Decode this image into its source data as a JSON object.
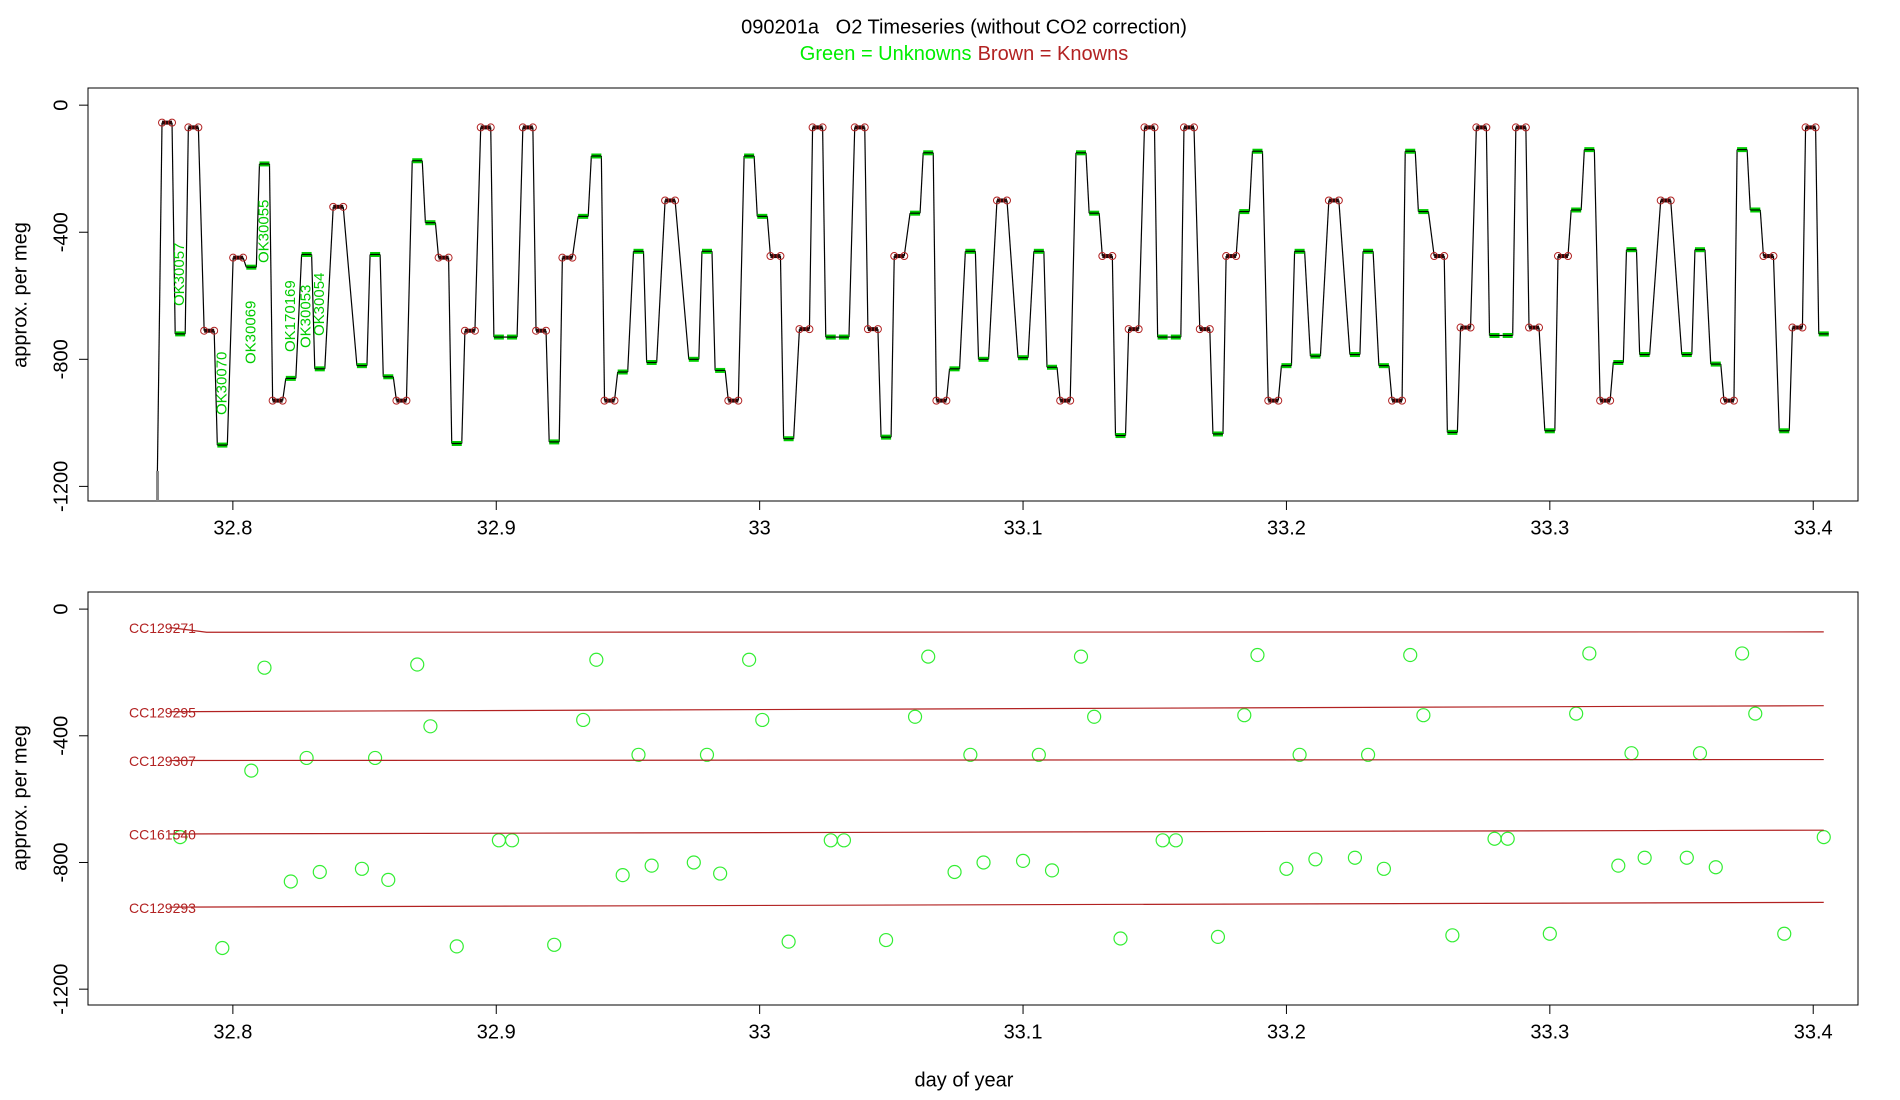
{
  "chart_data": [
    {
      "type": "line",
      "title": "090201a   O2 Timeseries (without CO2 correction)",
      "ylabel": "approx. per meg",
      "xlim": [
        32.745,
        33.417
      ],
      "xticks": [
        32.8,
        32.9,
        33.0,
        33.1,
        33.2,
        33.3,
        33.4
      ],
      "ylim": [
        -1246,
        54
      ],
      "yticks": [
        0,
        -400,
        -800,
        -1200
      ],
      "annotations": [
        "OK30057",
        "OK30070",
        "OK30069",
        "OK30055",
        "OK170169",
        "OK30053",
        "OK30054"
      ],
      "series": [
        {
          "name": "Green = Unknowns",
          "color": "#00cc00",
          "x": [
            32.78,
            32.796,
            32.807,
            32.812,
            32.822,
            32.828,
            32.833,
            32.849,
            32.854,
            32.859,
            32.87,
            32.875,
            32.885,
            32.901,
            32.906,
            32.922,
            32.933,
            32.938,
            32.948,
            32.954,
            32.959,
            32.975,
            32.98,
            32.985,
            32.996,
            33.001,
            33.011,
            33.027,
            33.032,
            33.048,
            33.059,
            33.064,
            33.074,
            33.08,
            33.085,
            33.1,
            33.106,
            33.111,
            33.122,
            33.127,
            33.137,
            33.153,
            33.158,
            33.174,
            33.184,
            33.189,
            33.2,
            33.205,
            33.211,
            33.226,
            33.231,
            33.237,
            33.247,
            33.252,
            33.263,
            33.279,
            33.284,
            33.3,
            33.31,
            33.315,
            33.326,
            33.331,
            33.336,
            33.352,
            33.357,
            33.363,
            33.373,
            33.378,
            33.389,
            33.404
          ],
          "values": [
            -720,
            -1070,
            -510,
            -185,
            -860,
            -470,
            -830,
            -820,
            -470,
            -855,
            -175,
            -370,
            -1065,
            -730,
            -730,
            -1060,
            -350,
            -160,
            -840,
            -460,
            -810,
            -800,
            -460,
            -835,
            -160,
            -350,
            -1050,
            -730,
            -730,
            -1045,
            -340,
            -150,
            -830,
            -460,
            -800,
            -795,
            -460,
            -825,
            -150,
            -340,
            -1040,
            -730,
            -730,
            -1035,
            -335,
            -145,
            -820,
            -460,
            -790,
            -785,
            -460,
            -820,
            -145,
            -335,
            -1030,
            -725,
            -725,
            -1025,
            -330,
            -140,
            -810,
            -455,
            -785,
            -785,
            -455,
            -815,
            -140,
            -330,
            -1025,
            -720
          ]
        },
        {
          "name": "Brown = Knowns",
          "color": "#b22222",
          "x": [
            32.775,
            32.785,
            32.791,
            32.802,
            32.817,
            32.84,
            32.864,
            32.88,
            32.89,
            32.896,
            32.912,
            32.917,
            32.927,
            32.943,
            32.966,
            32.99,
            33.006,
            33.017,
            33.022,
            33.038,
            33.043,
            33.053,
            33.069,
            33.092,
            33.116,
            33.132,
            33.142,
            33.148,
            33.163,
            33.169,
            33.179,
            33.195,
            33.218,
            33.242,
            33.258,
            33.268,
            33.274,
            33.289,
            33.294,
            33.305,
            33.321,
            33.344,
            33.368,
            33.383,
            33.394,
            33.399
          ],
          "values": [
            -55,
            -70,
            -710,
            -480,
            -930,
            -320,
            -930,
            -480,
            -710,
            -70,
            -70,
            -710,
            -480,
            -930,
            -300,
            -930,
            -475,
            -705,
            -70,
            -70,
            -705,
            -475,
            -930,
            -300,
            -930,
            -475,
            -705,
            -70,
            -70,
            -705,
            -475,
            -930,
            -300,
            -930,
            -475,
            -700,
            -70,
            -70,
            -700,
            -475,
            -930,
            -300,
            -930,
            -475,
            -700,
            -70
          ]
        }
      ]
    },
    {
      "type": "scatter",
      "xlabel": "day of year",
      "ylabel": "approx. per meg",
      "xlim": [
        32.745,
        33.417
      ],
      "xticks": [
        32.8,
        32.9,
        33.0,
        33.1,
        33.2,
        33.3,
        33.4
      ],
      "ylim": [
        -1250,
        54
      ],
      "yticks": [
        0,
        -400,
        -800,
        -1200
      ],
      "series": [
        {
          "color": "#33ee33",
          "type": "scatter",
          "x": [
            32.78,
            32.796,
            32.807,
            32.812,
            32.822,
            32.828,
            32.833,
            32.849,
            32.854,
            32.859,
            32.87,
            32.875,
            32.885,
            32.901,
            32.906,
            32.922,
            32.933,
            32.938,
            32.948,
            32.954,
            32.959,
            32.975,
            32.98,
            32.985,
            32.996,
            33.001,
            33.011,
            33.027,
            33.032,
            33.048,
            33.059,
            33.064,
            33.074,
            33.08,
            33.085,
            33.1,
            33.106,
            33.111,
            33.122,
            33.127,
            33.137,
            33.153,
            33.158,
            33.174,
            33.184,
            33.189,
            33.2,
            33.205,
            33.211,
            33.226,
            33.231,
            33.237,
            33.247,
            33.252,
            33.263,
            33.279,
            33.284,
            33.3,
            33.31,
            33.315,
            33.326,
            33.331,
            33.336,
            33.352,
            33.357,
            33.363,
            33.373,
            33.378,
            33.389,
            33.404
          ],
          "values": [
            -720,
            -1070,
            -510,
            -185,
            -860,
            -470,
            -830,
            -820,
            -470,
            -855,
            -175,
            -370,
            -1065,
            -730,
            -730,
            -1060,
            -350,
            -160,
            -840,
            -460,
            -810,
            -800,
            -460,
            -835,
            -160,
            -350,
            -1050,
            -730,
            -730,
            -1045,
            -340,
            -150,
            -830,
            -460,
            -800,
            -795,
            -460,
            -825,
            -150,
            -340,
            -1040,
            -730,
            -730,
            -1035,
            -335,
            -145,
            -820,
            -460,
            -790,
            -785,
            -460,
            -820,
            -145,
            -335,
            -1030,
            -725,
            -725,
            -1025,
            -330,
            -140,
            -810,
            -455,
            -785,
            -785,
            -455,
            -815,
            -140,
            -330,
            -1025,
            -720
          ]
        },
        {
          "name": "CC129271",
          "color": "#b22222",
          "type": "line",
          "x": [
            32.776,
            32.79,
            33.404
          ],
          "values": [
            -58,
            -73,
            -72
          ]
        },
        {
          "name": "CC129295",
          "color": "#b22222",
          "type": "line",
          "x": [
            32.776,
            33.404
          ],
          "values": [
            -324,
            -305
          ]
        },
        {
          "name": "CC129307",
          "color": "#b22222",
          "type": "line",
          "x": [
            32.776,
            33.404
          ],
          "values": [
            -478,
            -475
          ]
        },
        {
          "name": "CC161540",
          "color": "#b22222",
          "type": "line",
          "x": [
            32.776,
            33.404
          ],
          "values": [
            -710,
            -698
          ]
        },
        {
          "name": "CC129293",
          "color": "#b22222",
          "type": "line",
          "x": [
            32.776,
            33.404
          ],
          "values": [
            -941,
            -926
          ]
        }
      ]
    }
  ]
}
